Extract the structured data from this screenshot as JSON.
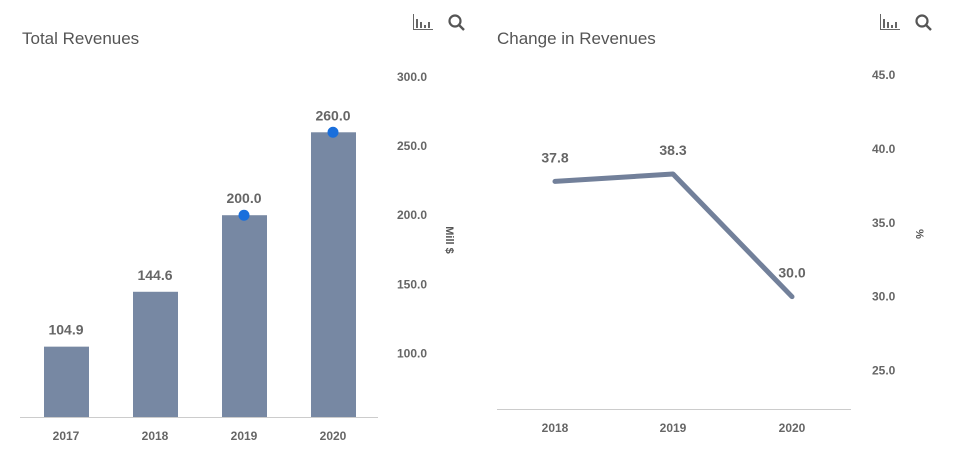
{
  "chart_data": [
    {
      "type": "bar",
      "title": "Total Revenues",
      "categories": [
        "2017",
        "2018",
        "2019",
        "2020"
      ],
      "values": [
        104.9,
        144.6,
        200.0,
        260.0
      ],
      "labels": [
        "104.9",
        "144.6",
        "200.0",
        "260.0"
      ],
      "markers": [
        false,
        false,
        true,
        true
      ],
      "ylabel": "Mill $",
      "ylim": [
        54,
        300
      ],
      "yticks": [
        "100.0",
        "150.0",
        "200.0",
        "250.0",
        "300.0"
      ],
      "ytick_values": [
        100,
        150,
        200,
        250,
        300
      ],
      "y_axis_side": "right",
      "grid": false,
      "bar_color": "#7788a3",
      "marker_color": "#1a6fdc"
    },
    {
      "type": "line",
      "title": "Change in Revenues",
      "categories": [
        "2018",
        "2019",
        "2020"
      ],
      "values": [
        37.8,
        38.3,
        30.0
      ],
      "labels": [
        "37.8",
        "38.3",
        "30.0"
      ],
      "ylabel": "%",
      "ylim": [
        22.4,
        45
      ],
      "yticks": [
        "25.0",
        "30.0",
        "35.0",
        "40.0",
        "45.0"
      ],
      "ytick_values": [
        25,
        30,
        35,
        40,
        45
      ],
      "y_axis_side": "right",
      "grid": false,
      "line_color": "#72809a"
    }
  ],
  "icons": [
    "bar-chart-icon",
    "search-icon"
  ]
}
